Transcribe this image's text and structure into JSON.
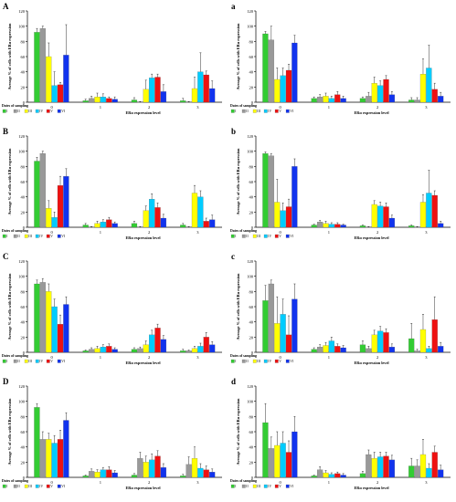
{
  "colors": {
    "I": "#33cc33",
    "II": "#999999",
    "III": "#ffff00",
    "IV": "#00ccff",
    "V": "#ee1111",
    "VI": "#1133ee"
  },
  "common": {
    "ylabel": "Average % of cells with ERα expression",
    "xlabel": "ERα expression level",
    "legend_title": "Dates of sampling",
    "legend": [
      "I",
      "II",
      "III",
      "IV",
      "V",
      "VI"
    ]
  },
  "chart_data": [
    {
      "panel": "A",
      "type": "bar",
      "ylim": [
        0,
        120
      ],
      "yticks": [
        0,
        20,
        40,
        60,
        80,
        100,
        120
      ],
      "categories": [
        "0",
        "1",
        "2",
        "3"
      ],
      "series": [
        {
          "name": "I",
          "values": [
            92,
            2,
            3,
            2
          ],
          "errors": [
            5,
            2,
            3,
            3
          ]
        },
        {
          "name": "II",
          "values": [
            97,
            5,
            0,
            0
          ],
          "errors": [
            3,
            3,
            1,
            1
          ]
        },
        {
          "name": "III",
          "values": [
            60,
            7,
            17,
            18
          ],
          "errors": [
            18,
            5,
            12,
            15
          ]
        },
        {
          "name": "IV",
          "values": [
            22,
            7,
            32,
            40
          ],
          "errors": [
            18,
            4,
            5,
            25
          ]
        },
        {
          "name": "V",
          "values": [
            23,
            5,
            33,
            36
          ],
          "errors": [
            3,
            2,
            4,
            5
          ]
        },
        {
          "name": "VI",
          "values": [
            62,
            4,
            14,
            18
          ],
          "errors": [
            40,
            3,
            9,
            10
          ]
        }
      ]
    },
    {
      "panel": "a",
      "type": "bar",
      "ylim": [
        0,
        120
      ],
      "yticks": [
        0,
        20,
        40,
        60,
        80,
        100,
        120
      ],
      "categories": [
        "0",
        "1",
        "2",
        "3"
      ],
      "series": [
        {
          "name": "I",
          "values": [
            90,
            5,
            5,
            3
          ],
          "errors": [
            3,
            2,
            2,
            3
          ]
        },
        {
          "name": "II",
          "values": [
            82,
            7,
            8,
            3
          ],
          "errors": [
            18,
            3,
            5,
            3
          ]
        },
        {
          "name": "III",
          "values": [
            30,
            8,
            25,
            37
          ],
          "errors": [
            15,
            4,
            8,
            20
          ]
        },
        {
          "name": "IV",
          "values": [
            35,
            5,
            22,
            45
          ],
          "errors": [
            10,
            3,
            6,
            30
          ]
        },
        {
          "name": "V",
          "values": [
            42,
            10,
            30,
            17
          ],
          "errors": [
            8,
            4,
            5,
            8
          ]
        },
        {
          "name": "VI",
          "values": [
            78,
            5,
            10,
            8
          ],
          "errors": [
            10,
            3,
            4,
            5
          ]
        }
      ]
    },
    {
      "panel": "B",
      "type": "bar",
      "ylim": [
        0,
        120
      ],
      "yticks": [
        0,
        20,
        40,
        60,
        80,
        100,
        120
      ],
      "categories": [
        "0",
        "1",
        "2",
        "3"
      ],
      "series": [
        {
          "name": "I",
          "values": [
            87,
            3,
            5,
            3
          ],
          "errors": [
            5,
            2,
            3,
            2
          ]
        },
        {
          "name": "II",
          "values": [
            97,
            0,
            0,
            0
          ],
          "errors": [
            3,
            1,
            1,
            1
          ]
        },
        {
          "name": "III",
          "values": [
            25,
            5,
            22,
            45
          ],
          "errors": [
            10,
            3,
            6,
            10
          ]
        },
        {
          "name": "IV",
          "values": [
            13,
            7,
            37,
            40
          ],
          "errors": [
            7,
            3,
            7,
            8
          ]
        },
        {
          "name": "V",
          "values": [
            55,
            10,
            26,
            8
          ],
          "errors": [
            12,
            3,
            6,
            4
          ]
        },
        {
          "name": "VI",
          "values": [
            67,
            5,
            12,
            10
          ],
          "errors": [
            10,
            2,
            5,
            6
          ]
        }
      ]
    },
    {
      "panel": "b",
      "type": "bar",
      "ylim": [
        0,
        120
      ],
      "yticks": [
        0,
        20,
        40,
        60,
        80,
        100,
        120
      ],
      "categories": [
        "0",
        "1",
        "2",
        "3"
      ],
      "series": [
        {
          "name": "I",
          "values": [
            97,
            3,
            2,
            2
          ],
          "errors": [
            2,
            1,
            1,
            1
          ]
        },
        {
          "name": "II",
          "values": [
            94,
            7,
            0,
            0
          ],
          "errors": [
            3,
            2,
            1,
            1
          ]
        },
        {
          "name": "III",
          "values": [
            33,
            5,
            30,
            33
          ],
          "errors": [
            30,
            3,
            5,
            10
          ]
        },
        {
          "name": "IV",
          "values": [
            22,
            4,
            28,
            45
          ],
          "errors": [
            10,
            2,
            5,
            30
          ]
        },
        {
          "name": "V",
          "values": [
            27,
            4,
            27,
            42
          ],
          "errors": [
            10,
            2,
            5,
            6
          ]
        },
        {
          "name": "VI",
          "values": [
            80,
            3,
            12,
            5
          ],
          "errors": [
            10,
            1,
            4,
            3
          ]
        }
      ]
    },
    {
      "panel": "C",
      "type": "bar",
      "ylim": [
        0,
        120
      ],
      "yticks": [
        0,
        20,
        40,
        60,
        80,
        100,
        120
      ],
      "categories": [
        "0",
        "1",
        "2",
        "3"
      ],
      "series": [
        {
          "name": "I",
          "values": [
            90,
            2,
            4,
            2
          ],
          "errors": [
            5,
            1,
            2,
            2
          ]
        },
        {
          "name": "II",
          "values": [
            92,
            4,
            5,
            2
          ],
          "errors": [
            5,
            2,
            2,
            1
          ]
        },
        {
          "name": "III",
          "values": [
            80,
            5,
            10,
            5
          ],
          "errors": [
            10,
            3,
            5,
            3
          ]
        },
        {
          "name": "IV",
          "values": [
            60,
            7,
            23,
            8
          ],
          "errors": [
            10,
            3,
            6,
            4
          ]
        },
        {
          "name": "V",
          "values": [
            37,
            8,
            32,
            20
          ],
          "errors": [
            12,
            3,
            5,
            6
          ]
        },
        {
          "name": "VI",
          "values": [
            63,
            4,
            17,
            10
          ],
          "errors": [
            10,
            2,
            5,
            4
          ]
        }
      ]
    },
    {
      "panel": "c",
      "type": "bar",
      "ylim": [
        0,
        120
      ],
      "yticks": [
        0,
        20,
        40,
        60,
        80,
        100,
        120
      ],
      "categories": [
        "0",
        "1",
        "2",
        "3"
      ],
      "series": [
        {
          "name": "I",
          "values": [
            68,
            4,
            10,
            18
          ],
          "errors": [
            20,
            2,
            5,
            20
          ]
        },
        {
          "name": "II",
          "values": [
            90,
            7,
            5,
            2
          ],
          "errors": [
            5,
            3,
            3,
            2
          ]
        },
        {
          "name": "III",
          "values": [
            38,
            9,
            23,
            30
          ],
          "errors": [
            35,
            4,
            6,
            20
          ]
        },
        {
          "name": "IV",
          "values": [
            50,
            15,
            28,
            5
          ],
          "errors": [
            20,
            5,
            6,
            3
          ]
        },
        {
          "name": "V",
          "values": [
            23,
            8,
            26,
            43
          ],
          "errors": [
            25,
            3,
            5,
            30
          ]
        },
        {
          "name": "VI",
          "values": [
            70,
            6,
            7,
            8
          ],
          "errors": [
            20,
            3,
            4,
            5
          ]
        }
      ]
    },
    {
      "panel": "D",
      "type": "bar",
      "ylim": [
        0,
        120
      ],
      "yticks": [
        0,
        20,
        40,
        60,
        80,
        100,
        120
      ],
      "categories": [
        "0",
        "1",
        "2",
        "3"
      ],
      "series": [
        {
          "name": "I",
          "values": [
            92,
            2,
            3,
            2
          ],
          "errors": [
            5,
            1,
            2,
            2
          ]
        },
        {
          "name": "II",
          "values": [
            50,
            8,
            25,
            17
          ],
          "errors": [
            10,
            3,
            8,
            10
          ]
        },
        {
          "name": "III",
          "values": [
            50,
            7,
            20,
            25
          ],
          "errors": [
            8,
            3,
            8,
            15
          ]
        },
        {
          "name": "IV",
          "values": [
            45,
            10,
            23,
            12
          ],
          "errors": [
            10,
            3,
            8,
            6
          ]
        },
        {
          "name": "V",
          "values": [
            50,
            10,
            28,
            10
          ],
          "errors": [
            12,
            4,
            7,
            5
          ]
        },
        {
          "name": "VI",
          "values": [
            75,
            6,
            13,
            7
          ],
          "errors": [
            10,
            3,
            5,
            4
          ]
        }
      ]
    },
    {
      "panel": "d",
      "type": "bar",
      "ylim": [
        0,
        120
      ],
      "yticks": [
        0,
        20,
        40,
        60,
        80,
        100,
        120
      ],
      "categories": [
        "0",
        "1",
        "2",
        "3"
      ],
      "series": [
        {
          "name": "I",
          "values": [
            72,
            2,
            5,
            15
          ],
          "errors": [
            25,
            1,
            3,
            10
          ]
        },
        {
          "name": "II",
          "values": [
            38,
            10,
            30,
            15
          ],
          "errors": [
            15,
            4,
            6,
            8
          ]
        },
        {
          "name": "III",
          "values": [
            42,
            6,
            25,
            30
          ],
          "errors": [
            18,
            3,
            8,
            20
          ]
        },
        {
          "name": "IV",
          "values": [
            45,
            4,
            27,
            12
          ],
          "errors": [
            15,
            2,
            6,
            6
          ]
        },
        {
          "name": "V",
          "values": [
            33,
            5,
            28,
            33
          ],
          "errors": [
            15,
            2,
            5,
            8
          ]
        },
        {
          "name": "VI",
          "values": [
            60,
            3,
            23,
            10
          ],
          "errors": [
            20,
            2,
            6,
            6
          ]
        }
      ]
    }
  ]
}
